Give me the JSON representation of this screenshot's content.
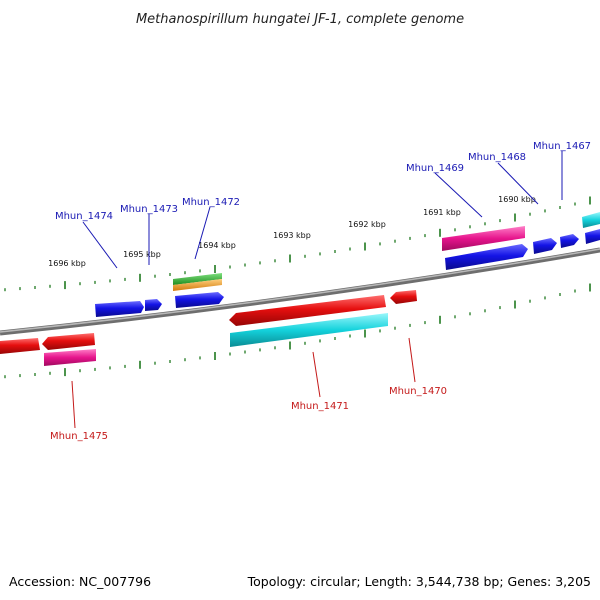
{
  "title": "Methanospirillum hungatei JF-1, complete genome",
  "footer": {
    "accession": "Accession: NC_007796",
    "summary": "Topology: circular; Length: 3,544,738 bp; Genes: 3,205"
  },
  "ticks": [
    {
      "label": "1696 kbp",
      "kbp": 1696
    },
    {
      "label": "1695 kbp",
      "kbp": 1695
    },
    {
      "label": "1694 kbp",
      "kbp": 1694
    },
    {
      "label": "1693 kbp",
      "kbp": 1693
    },
    {
      "label": "1692 kbp",
      "kbp": 1692
    },
    {
      "label": "1691 kbp",
      "kbp": 1691
    },
    {
      "label": "1690 kbp",
      "kbp": 1690
    }
  ],
  "gene_labels": [
    {
      "id": "Mhun_1474",
      "strand": "forward"
    },
    {
      "id": "Mhun_1473",
      "strand": "forward"
    },
    {
      "id": "Mhun_1472",
      "strand": "forward"
    },
    {
      "id": "Mhun_1469",
      "strand": "forward"
    },
    {
      "id": "Mhun_1468",
      "strand": "forward"
    },
    {
      "id": "Mhun_1467",
      "strand": "forward"
    },
    {
      "id": "Mhun_1475",
      "strand": "reverse"
    },
    {
      "id": "Mhun_1471",
      "strand": "reverse"
    },
    {
      "id": "Mhun_1470",
      "strand": "reverse"
    }
  ],
  "colors": {
    "forward_label": "#1a1ab4",
    "reverse_label": "#c41a1a",
    "backbone": "#888888",
    "tick": "#1f7a1f",
    "cds_forward": "#1414e6",
    "cds_reverse": "#e60f0f",
    "feature_magenta": "#e6148c",
    "feature_cyan": "#14d2dc",
    "feature_green": "#28b428",
    "feature_orange": "#f0a01e"
  },
  "icons": [
    "forward-arrow-icon",
    "reverse-arrow-icon"
  ]
}
